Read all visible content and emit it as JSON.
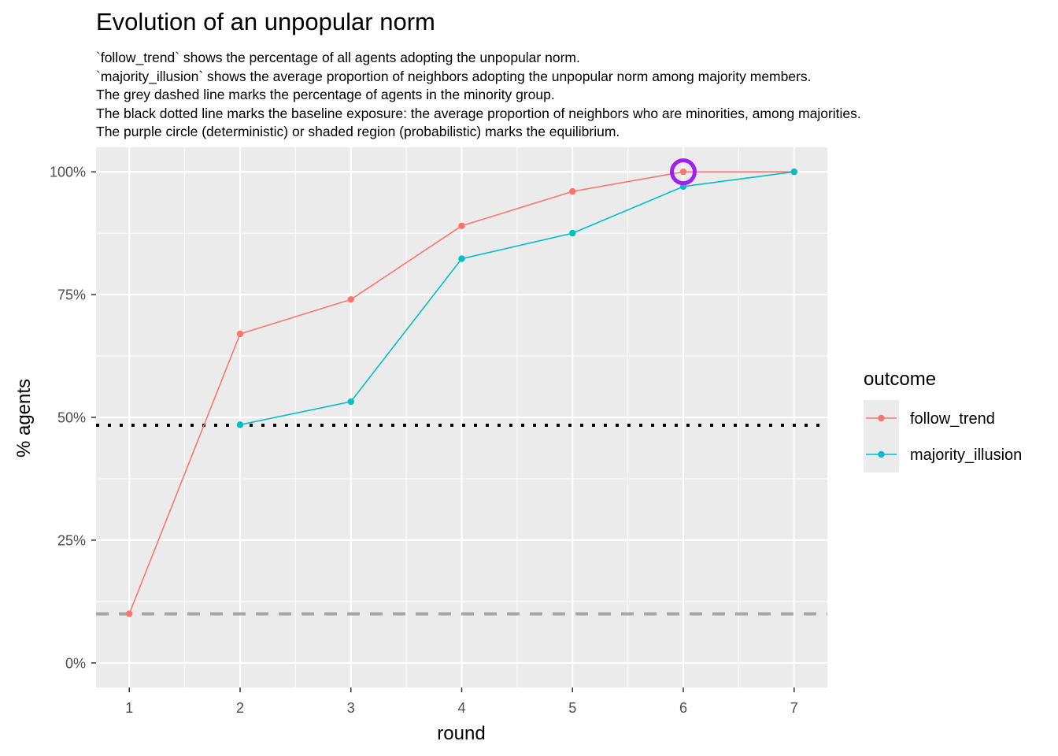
{
  "chart_data": {
    "type": "line",
    "title": "Evolution of an unpopular norm",
    "subtitle_lines": [
      "`follow_trend` shows the percentage of all agents adopting the unpopular norm.",
      "`majority_illusion` shows the average proportion of neighbors adopting the unpopular norm among majority members.",
      "The grey dashed line marks the percentage of agents in the minority group.",
      "The black dotted line marks the baseline exposure: the average proportion of neighbors who are minorities, among majorities.",
      "The purple circle (deterministic) or shaded region (probabilistic) marks the equilibrium."
    ],
    "xlabel": "round",
    "ylabel": "% agents",
    "xlim": [
      0.7,
      7.3
    ],
    "ylim": [
      -0.05,
      1.05
    ],
    "x_ticks": [
      1,
      2,
      3,
      4,
      5,
      6,
      7
    ],
    "x_tick_labels": [
      "1",
      "2",
      "3",
      "4",
      "5",
      "6",
      "7"
    ],
    "y_ticks": [
      0,
      0.25,
      0.5,
      0.75,
      1.0
    ],
    "y_tick_labels": [
      "0%",
      "25%",
      "50%",
      "75%",
      "100%"
    ],
    "grid": true,
    "legend": {
      "title": "outcome",
      "position": "right"
    },
    "series": [
      {
        "name": "follow_trend",
        "color": "#F8766D",
        "x": [
          1,
          2,
          3,
          4,
          5,
          6,
          7
        ],
        "y": [
          0.1,
          0.67,
          0.74,
          0.89,
          0.96,
          1.0,
          1.0
        ]
      },
      {
        "name": "majority_illusion",
        "color": "#00BFC4",
        "x": [
          2,
          3,
          4,
          5,
          6,
          7
        ],
        "y": [
          0.485,
          0.532,
          0.823,
          0.875,
          0.97,
          1.0
        ]
      }
    ],
    "reference_lines": [
      {
        "kind": "dashed",
        "color": "#A6A6A6",
        "y": 0.1
      },
      {
        "kind": "dotted",
        "color": "#000000",
        "y": 0.484
      }
    ],
    "equilibrium_marker": {
      "x": 6,
      "y": 1.0,
      "color": "#A020F0"
    }
  }
}
